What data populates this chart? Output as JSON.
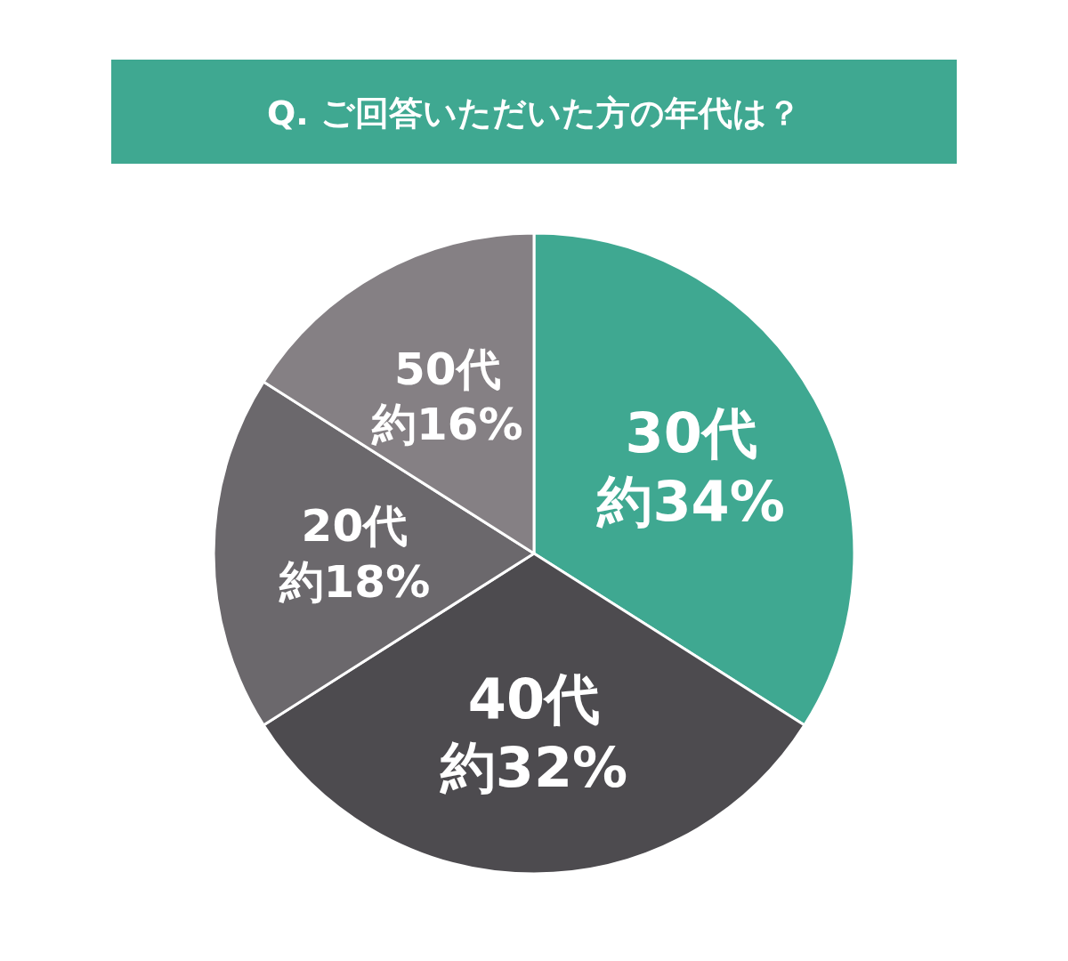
{
  "chart_data": {
    "type": "pie",
    "title": "Q. ご回答いただいた方の年代は？",
    "categories": [
      "30代",
      "40代",
      "20代",
      "50代"
    ],
    "values": [
      34,
      32,
      18,
      16
    ],
    "value_labels": [
      "約34%",
      "約32%",
      "約18%",
      "約16%"
    ],
    "colors": [
      "#3fa891",
      "#4d4b4f",
      "#6b686c",
      "#858084"
    ]
  }
}
